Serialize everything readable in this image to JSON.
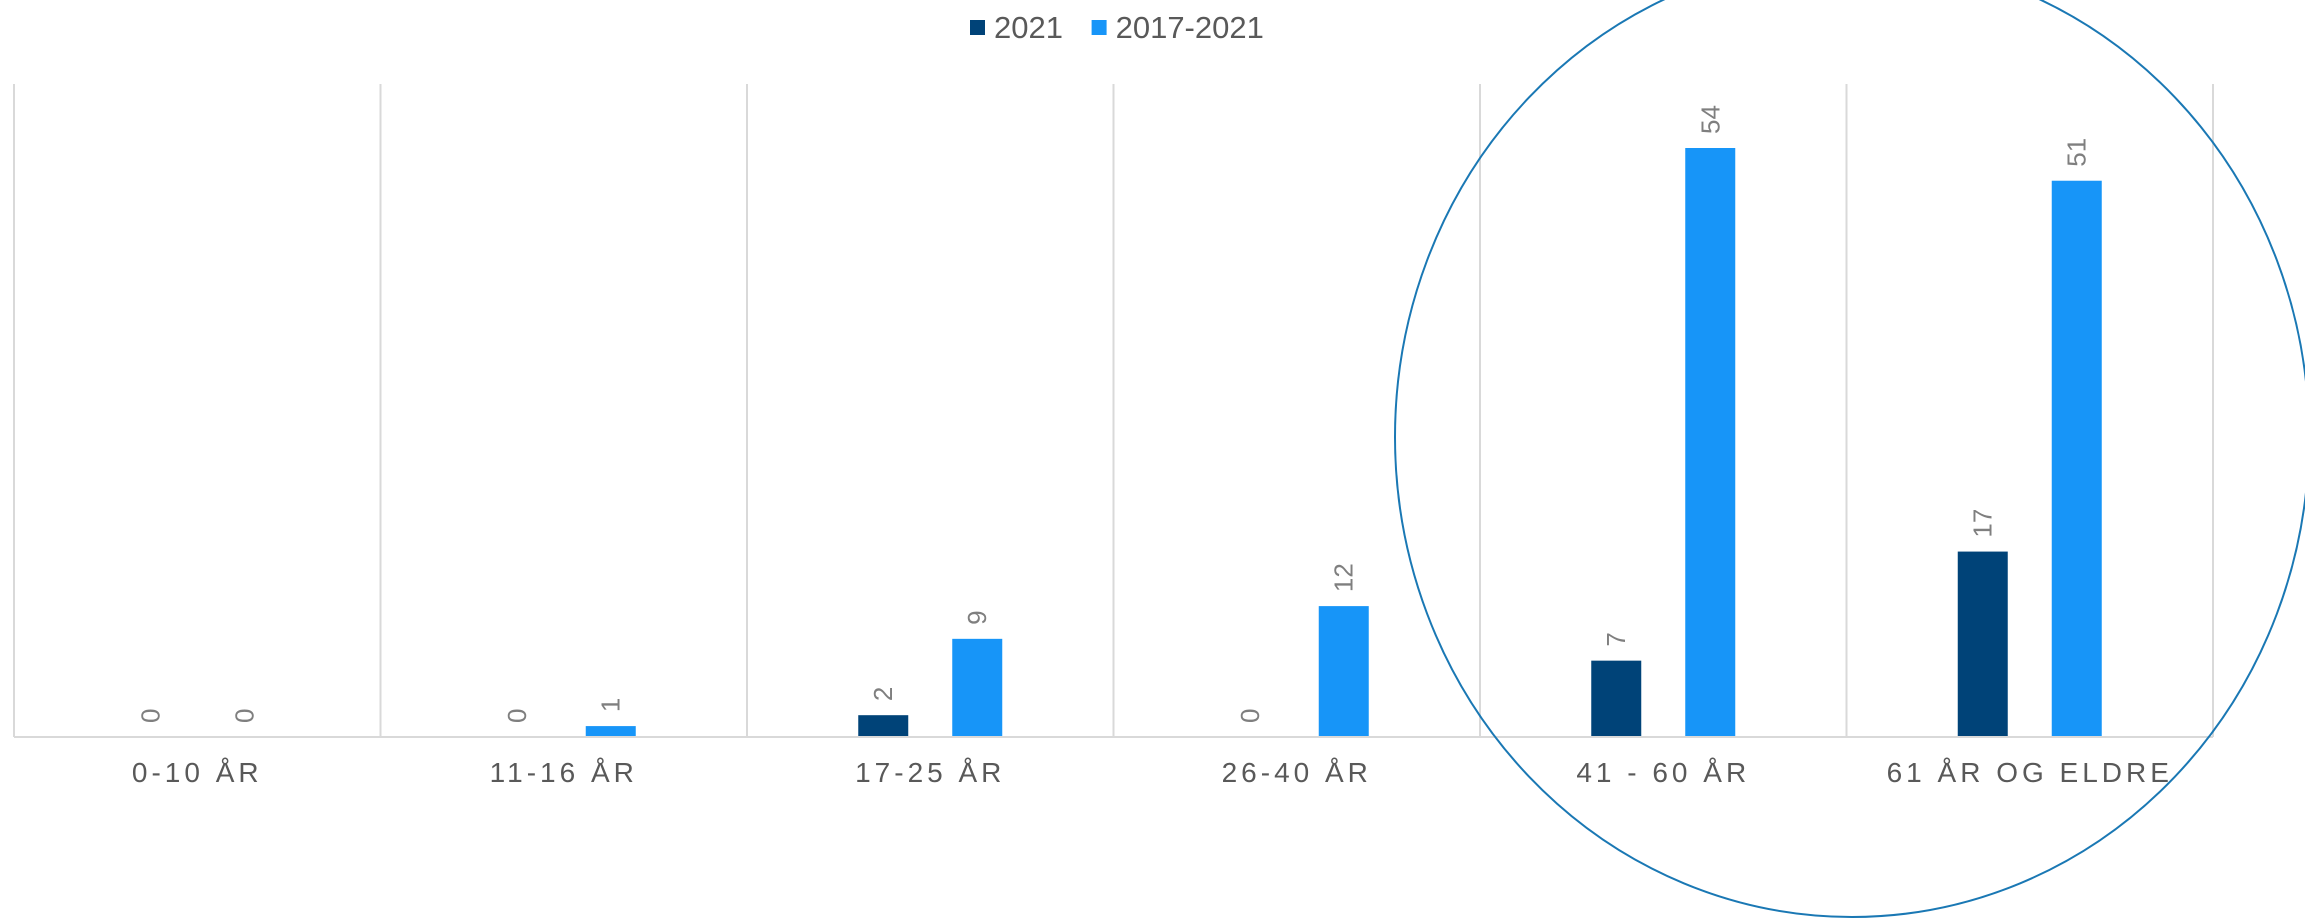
{
  "chart_data": {
    "type": "bar",
    "categories": [
      "0-10 ÅR",
      "11-16 ÅR",
      "17-25 ÅR",
      "26-40 ÅR",
      "41 - 60 ÅR",
      "61 ÅR OG ELDRE"
    ],
    "series": [
      {
        "name": "2021",
        "values": [
          0,
          0,
          2,
          0,
          7,
          17
        ],
        "color": "#004378"
      },
      {
        "name": "2017-2021",
        "values": [
          0,
          1,
          9,
          12,
          54,
          51
        ],
        "color": "#1795f8"
      }
    ],
    "title": "",
    "xlabel": "",
    "ylabel": "",
    "ylim": [
      0,
      60
    ],
    "legend_position": "top-center",
    "grid": "vertical category separators",
    "data_labels": "rotated",
    "annotation": "circle highlighting 41 - 60 ÅR and 61 ÅR OG ELDRE",
    "annotation_color": "#1a78b4"
  }
}
